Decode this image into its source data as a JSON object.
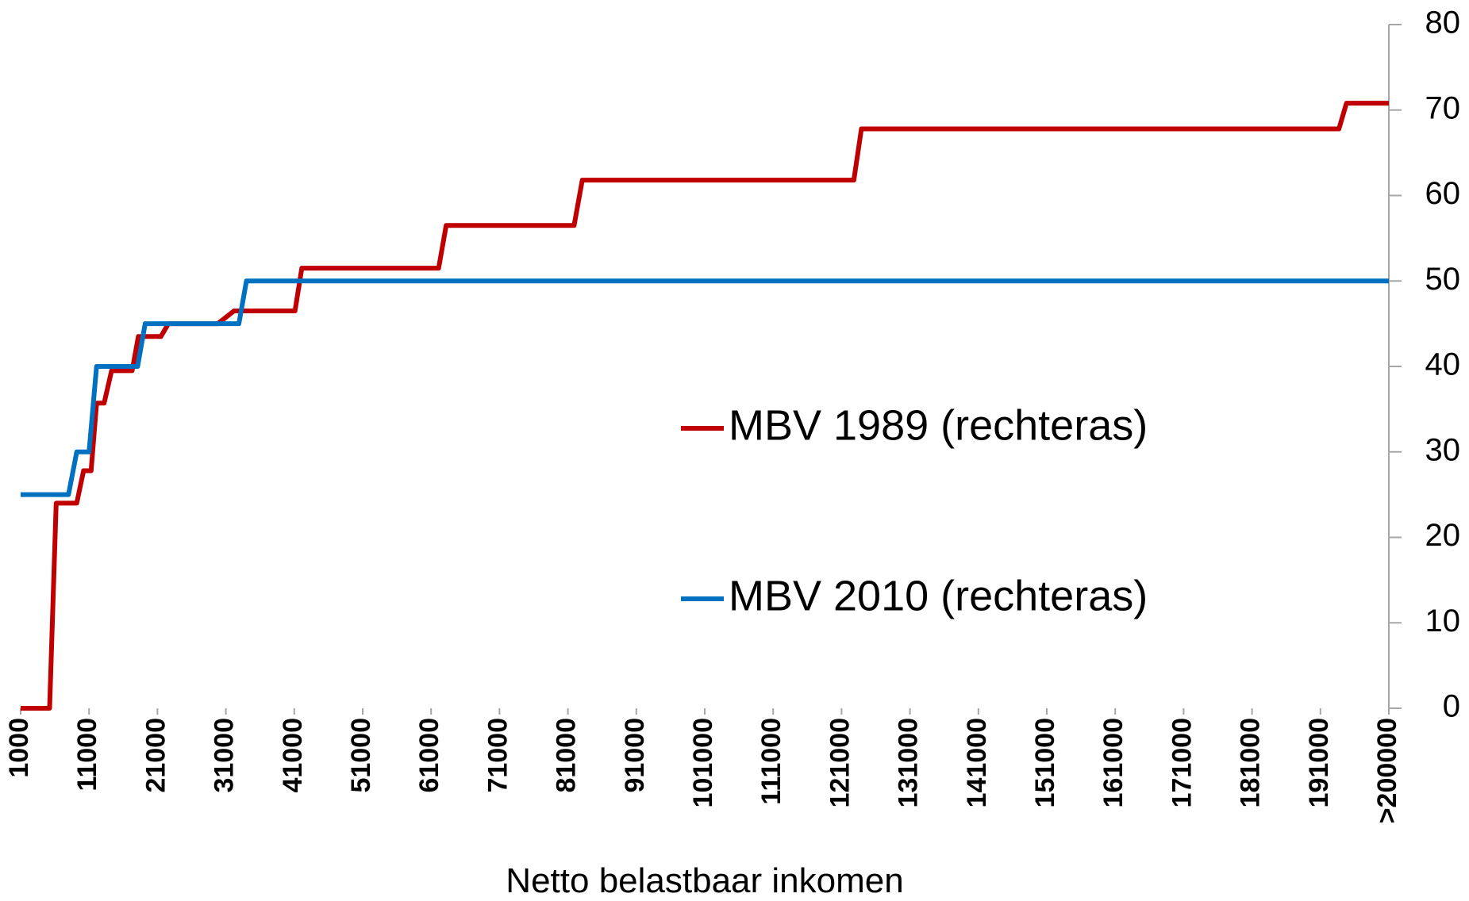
{
  "chart_data": {
    "type": "line",
    "xlabel": "Netto belastbaar inkomen",
    "xlim": [
      1000,
      201000
    ],
    "xticks": [
      1000,
      11000,
      21000,
      31000,
      41000,
      51000,
      61000,
      71000,
      81000,
      91000,
      101000,
      111000,
      121000,
      131000,
      141000,
      151000,
      161000,
      171000,
      181000,
      191000,
      {
        "value": 201000,
        "label": ">200000"
      }
    ],
    "ylim": [
      0,
      80
    ],
    "yticks": [
      0,
      10,
      20,
      30,
      40,
      50,
      60,
      70,
      80
    ],
    "y_axis_side": "right",
    "legend": "center",
    "series": [
      {
        "name": "MBV 1989 (rechteras)",
        "color": "#c00000",
        "x": [
          1000,
          5240,
          6200,
          9200,
          10200,
          11300,
          12100,
          13200,
          14300,
          17300,
          18200,
          21500,
          22600,
          29800,
          32200,
          41100,
          42100,
          62100,
          63200,
          81900,
          83100,
          122800,
          123900,
          193700,
          194800,
          201000
        ],
        "values": [
          0,
          0,
          24,
          24,
          27.8,
          27.8,
          35.7,
          35.7,
          39.5,
          39.5,
          43.5,
          43.5,
          45,
          45,
          46.5,
          46.5,
          51.5,
          51.5,
          56.5,
          56.5,
          61.8,
          61.8,
          67.8,
          67.8,
          70.8,
          70.8
        ]
      },
      {
        "name": "MBV 2010 (rechteras)",
        "color": "#0070c0",
        "x": [
          1000,
          8000,
          9200,
          11000,
          12100,
          18100,
          19200,
          32900,
          34000,
          201000
        ],
        "values": [
          25,
          25,
          30,
          30,
          40,
          40,
          45,
          45,
          50,
          50
        ]
      }
    ]
  }
}
